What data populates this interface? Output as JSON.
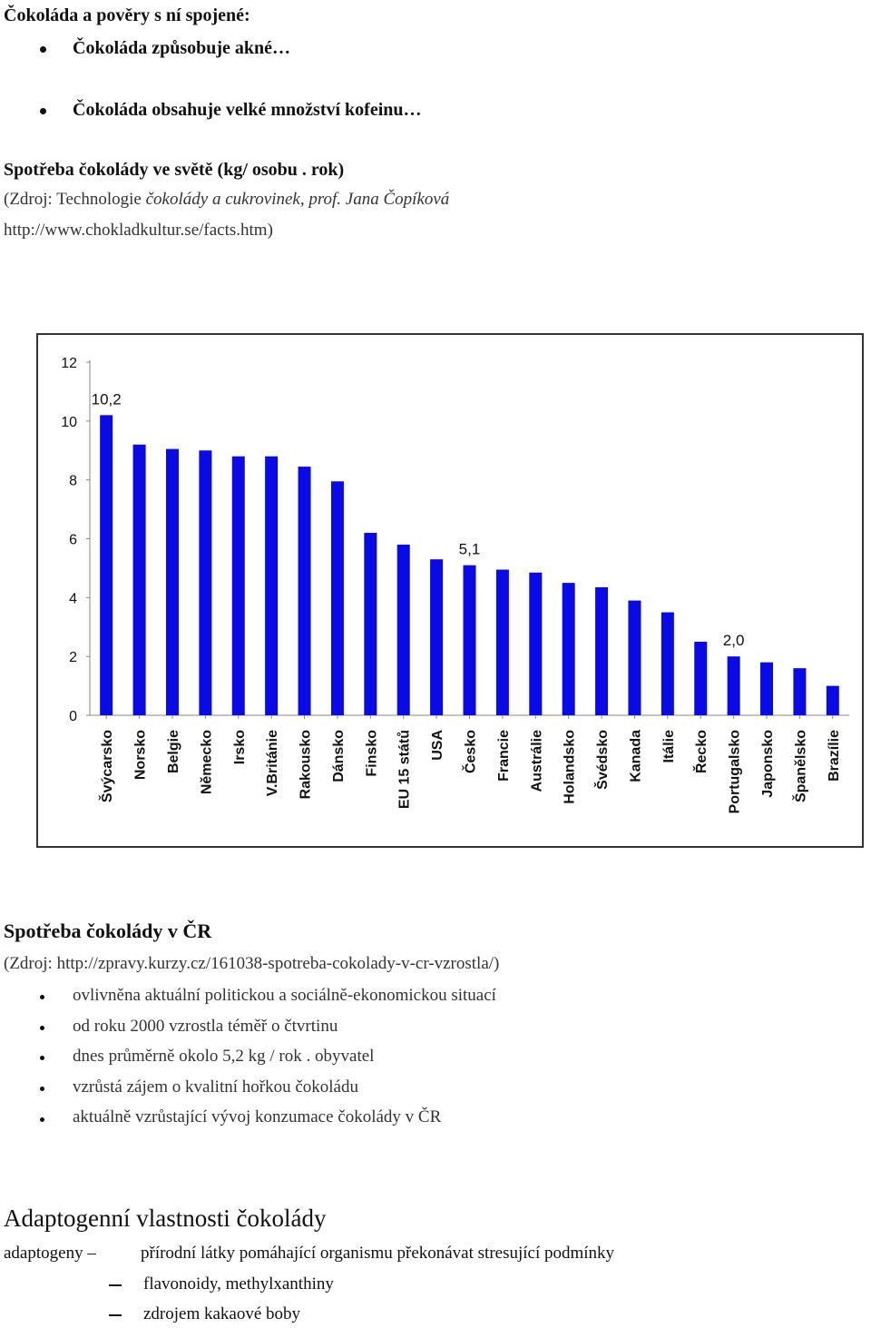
{
  "myths": {
    "title": "Čokoláda a pověry s ní spojené:",
    "items": [
      "Čokoláda způsobuje akné…",
      "Čokoláda obsahuje velké množství kofeinu…"
    ]
  },
  "world": {
    "title": "Spotřeba čokolády ve světě (kg/ osobu . rok)",
    "source_prefix": "(Zdroj: Technologie ",
    "source_italic": "čokolády a cukrovinek, prof. Jana Čopíková",
    "source_url": "http://www.chokladkultur.se/facts.htm)"
  },
  "chart_data": {
    "type": "bar",
    "categories": [
      "Švýcarsko",
      "Norsko",
      "Belgie",
      "Německo",
      "Irsko",
      "V.Británie",
      "Rakousko",
      "Dánsko",
      "Finsko",
      "EU 15 států",
      "USA",
      "Česko",
      "Francie",
      "Austrálie",
      "Holandsko",
      "Švédsko",
      "Kanada",
      "Itálie",
      "Řecko",
      "Portugalsko",
      "Japonsko",
      "Španělsko",
      "Brazílie"
    ],
    "values": [
      10.2,
      9.2,
      9.05,
      9.0,
      8.8,
      8.8,
      8.45,
      7.95,
      6.2,
      5.8,
      5.3,
      5.1,
      4.95,
      4.85,
      4.5,
      4.35,
      3.9,
      3.5,
      2.5,
      2.0,
      1.8,
      1.6,
      1.0
    ],
    "data_labels": [
      {
        "index": 0,
        "text": "10,2"
      },
      {
        "index": 11,
        "text": "5,1"
      },
      {
        "index": 19,
        "text": "2,0"
      }
    ],
    "yticks": [
      "0",
      "2",
      "4",
      "6",
      "8",
      "10",
      "12"
    ],
    "ylim": [
      0,
      12
    ],
    "bar_color": "#0a0ae6",
    "grid": false
  },
  "cr": {
    "title": "Spotřeba čokolády v ČR",
    "source": "(Zdroj: http://zpravy.kurzy.cz/161038-spotreba-cokolady-v-cr-vzrostla/)",
    "items": [
      "ovlivněna aktuální politickou a sociálně-ekonomickou situací",
      "od roku 2000 vzrostla téměř o čtvrtinu",
      "dnes průměrně okolo 5,2 kg / rok . obyvatel",
      "vzrůstá zájem o kvalitní hořkou čokoládu",
      "aktuálně vzrůstající vývoj konzumace čokolády v ČR"
    ]
  },
  "adapto": {
    "title": "Adaptogenní vlastnosti čokolády",
    "term": "adaptogeny –",
    "definition": "přírodní látky pomáhající organismu překonávat stresující podmínky",
    "subitems": [
      "flavonoidy, methylxanthiny",
      "zdrojem kakaové boby"
    ]
  }
}
